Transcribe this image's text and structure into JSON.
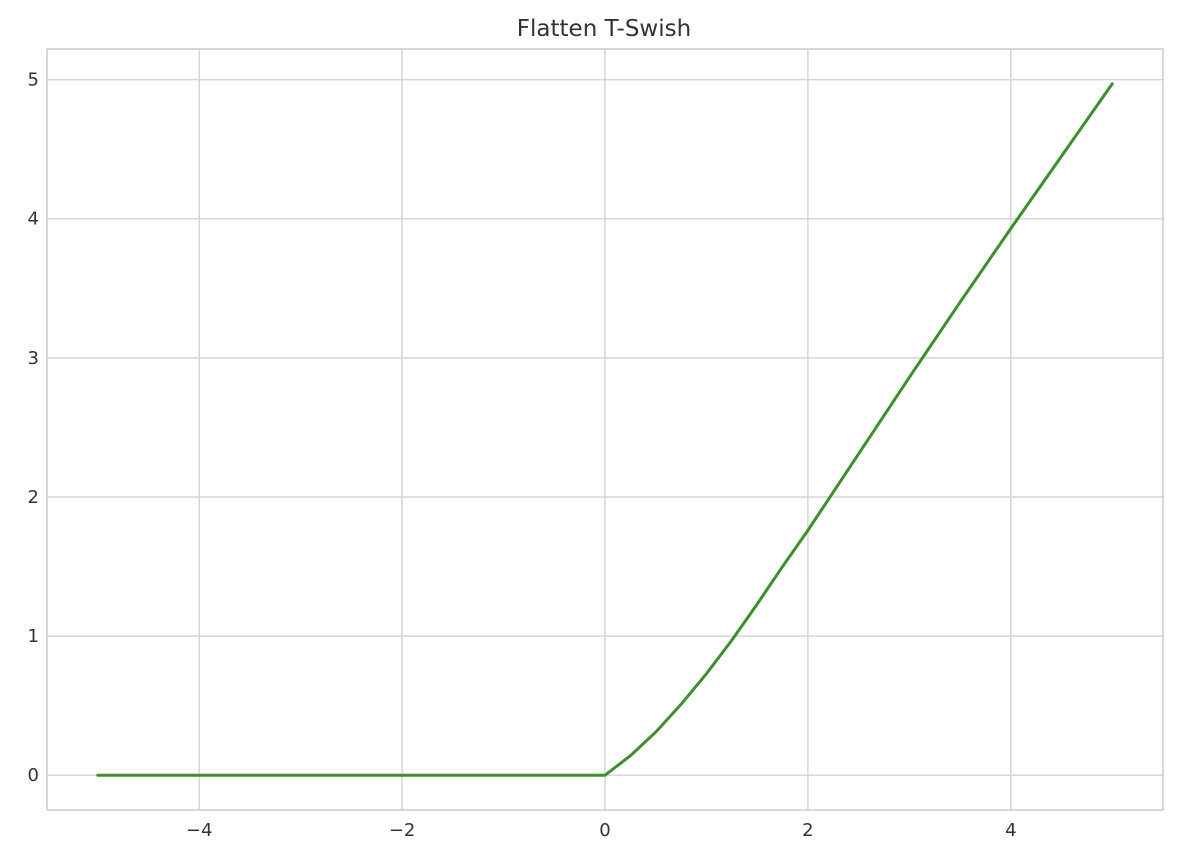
{
  "chart_data": {
    "type": "line",
    "title": "Flatten T-Swish",
    "xlabel": "",
    "ylabel": "",
    "xlim": [
      -5.5,
      5.5
    ],
    "ylim": [
      -0.25,
      5.22
    ],
    "xticks": [
      -4,
      -2,
      0,
      2,
      4
    ],
    "xtick_labels": [
      "−4",
      "−2",
      "0",
      "2",
      "4"
    ],
    "yticks": [
      0,
      1,
      2,
      3,
      4,
      5
    ],
    "ytick_labels": [
      "0",
      "1",
      "2",
      "3",
      "4",
      "5"
    ],
    "grid": true,
    "legend": "none",
    "series": [
      {
        "color": "#3d8f2c",
        "x": [
          -5,
          -4,
          -3,
          -2,
          -1,
          0,
          0.25,
          0.5,
          0.75,
          1,
          1.25,
          1.5,
          1.75,
          2,
          2.5,
          3,
          3.5,
          4,
          4.5,
          5
        ],
        "y": [
          0,
          0,
          0,
          0,
          0,
          0,
          0.14,
          0.31,
          0.51,
          0.73,
          0.97,
          1.23,
          1.5,
          1.76,
          2.31,
          2.86,
          3.4,
          3.93,
          4.45,
          4.97
        ]
      }
    ]
  }
}
